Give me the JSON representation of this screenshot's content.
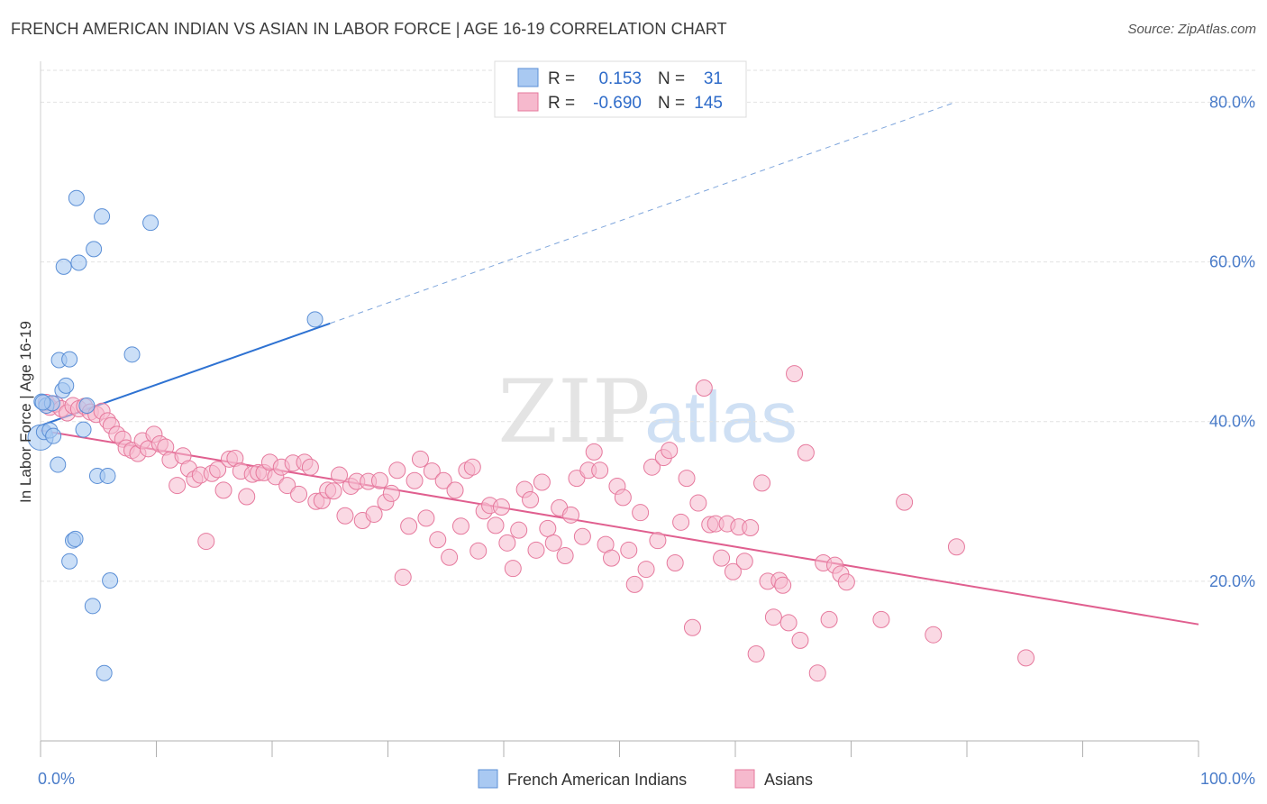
{
  "header": {
    "title": "FRENCH AMERICAN INDIAN VS ASIAN IN LABOR FORCE | AGE 16-19 CORRELATION CHART",
    "source": "Source: ZipAtlas.com"
  },
  "watermark": {
    "zip": "ZIP",
    "atlas": "atlas"
  },
  "legend_top": [
    {
      "r_label": "R =",
      "r_value": "0.153",
      "n_label": "N =",
      "n_value": "31"
    },
    {
      "r_label": "R =",
      "r_value": "-0.690",
      "n_label": "N =",
      "n_value": "145"
    }
  ],
  "legend_bottom": [
    "French American Indians",
    "Asians"
  ],
  "colors": {
    "blue_fill": "#a9c9f2",
    "blue_stroke": "#5b8fd6",
    "blue_line": "#2e72d2",
    "pink_fill": "#f6b9cd",
    "pink_stroke": "#e6799d",
    "pink_line": "#e05f8f",
    "tick_text": "#4a7cc9",
    "grid": "#e2e2e2"
  },
  "chart_data": {
    "type": "scatter",
    "title": "FRENCH AMERICAN INDIAN VS ASIAN IN LABOR FORCE | AGE 16-19 CORRELATION CHART",
    "xlabel": "",
    "ylabel": "In Labor Force | Age 16-19",
    "xlim": [
      0,
      100
    ],
    "ylim": [
      0,
      84
    ],
    "x_tick_labels": [
      "0.0%",
      "100.0%"
    ],
    "y_ticks": [
      20,
      40,
      60,
      80
    ],
    "y_tick_labels": [
      "20.0%",
      "40.0%",
      "60.0%",
      "80.0%"
    ],
    "grid": true,
    "legend_position": "top-center",
    "series": [
      {
        "name": "French American Indians",
        "color": "#a9c9f2",
        "r": 0.153,
        "n": 31,
        "trend": {
          "x": [
            0,
            25
          ],
          "y": [
            39.5,
            52.3
          ],
          "dashed_extension_to": [
            79,
            80
          ]
        },
        "points": [
          [
            0.0,
            38.0
          ],
          [
            0.1,
            42.5
          ],
          [
            0.3,
            38.7
          ],
          [
            0.5,
            42.0
          ],
          [
            0.8,
            38.9
          ],
          [
            1.0,
            42.3
          ],
          [
            1.1,
            38.2
          ],
          [
            1.5,
            34.6
          ],
          [
            1.6,
            47.7
          ],
          [
            1.9,
            43.9
          ],
          [
            2.0,
            59.4
          ],
          [
            2.2,
            44.5
          ],
          [
            2.5,
            47.8
          ],
          [
            2.5,
            22.5
          ],
          [
            2.8,
            25.1
          ],
          [
            3.0,
            25.3
          ],
          [
            3.1,
            68.0
          ],
          [
            3.3,
            59.9
          ],
          [
            3.7,
            39.0
          ],
          [
            4.0,
            42.0
          ],
          [
            4.5,
            16.9
          ],
          [
            4.6,
            61.6
          ],
          [
            4.9,
            33.2
          ],
          [
            5.3,
            65.7
          ],
          [
            5.5,
            8.5
          ],
          [
            5.8,
            33.2
          ],
          [
            6.0,
            20.1
          ],
          [
            7.9,
            48.4
          ],
          [
            9.5,
            64.9
          ],
          [
            23.7,
            52.8
          ],
          [
            0.2,
            42.4
          ]
        ]
      },
      {
        "name": "Asians",
        "color": "#f6b9cd",
        "r": -0.69,
        "n": 145,
        "trend": {
          "x": [
            0,
            100
          ],
          "y": [
            38.9,
            14.6
          ]
        },
        "points": [
          [
            0.5,
            42.4
          ],
          [
            0.8,
            41.8
          ],
          [
            1.3,
            42.2
          ],
          [
            1.8,
            41.6
          ],
          [
            2.3,
            41.1
          ],
          [
            2.8,
            42.0
          ],
          [
            3.3,
            41.6
          ],
          [
            3.8,
            41.9
          ],
          [
            4.3,
            41.2
          ],
          [
            4.8,
            40.9
          ],
          [
            5.3,
            41.3
          ],
          [
            5.8,
            40.1
          ],
          [
            6.1,
            39.5
          ],
          [
            6.6,
            38.4
          ],
          [
            7.1,
            37.8
          ],
          [
            7.4,
            36.7
          ],
          [
            7.9,
            36.4
          ],
          [
            8.4,
            36.0
          ],
          [
            8.8,
            37.6
          ],
          [
            9.3,
            36.6
          ],
          [
            9.8,
            38.4
          ],
          [
            10.3,
            37.2
          ],
          [
            10.8,
            36.8
          ],
          [
            11.2,
            35.2
          ],
          [
            11.8,
            32.0
          ],
          [
            12.3,
            35.7
          ],
          [
            12.8,
            34.1
          ],
          [
            13.3,
            32.8
          ],
          [
            13.8,
            33.3
          ],
          [
            14.3,
            25.0
          ],
          [
            14.8,
            33.5
          ],
          [
            15.3,
            34.0
          ],
          [
            15.8,
            31.4
          ],
          [
            16.3,
            35.3
          ],
          [
            16.8,
            35.4
          ],
          [
            17.3,
            33.8
          ],
          [
            17.8,
            30.6
          ],
          [
            18.3,
            33.4
          ],
          [
            18.8,
            33.6
          ],
          [
            19.3,
            33.6
          ],
          [
            19.8,
            34.9
          ],
          [
            20.3,
            33.1
          ],
          [
            20.8,
            34.3
          ],
          [
            21.3,
            32.0
          ],
          [
            21.8,
            34.8
          ],
          [
            22.3,
            30.9
          ],
          [
            22.8,
            34.9
          ],
          [
            23.3,
            34.3
          ],
          [
            23.8,
            30.0
          ],
          [
            24.3,
            30.1
          ],
          [
            24.8,
            31.4
          ],
          [
            25.3,
            31.3
          ],
          [
            25.8,
            33.3
          ],
          [
            26.3,
            28.2
          ],
          [
            26.8,
            31.9
          ],
          [
            27.3,
            32.5
          ],
          [
            27.8,
            27.6
          ],
          [
            28.3,
            32.5
          ],
          [
            28.8,
            28.4
          ],
          [
            29.3,
            32.6
          ],
          [
            29.8,
            29.9
          ],
          [
            30.3,
            31.0
          ],
          [
            30.8,
            33.9
          ],
          [
            31.3,
            20.5
          ],
          [
            31.8,
            26.9
          ],
          [
            32.3,
            32.6
          ],
          [
            32.8,
            35.3
          ],
          [
            33.3,
            27.9
          ],
          [
            33.8,
            33.8
          ],
          [
            34.3,
            25.2
          ],
          [
            34.8,
            32.6
          ],
          [
            35.3,
            23.0
          ],
          [
            35.8,
            31.4
          ],
          [
            36.3,
            26.9
          ],
          [
            36.8,
            33.9
          ],
          [
            37.3,
            34.3
          ],
          [
            37.8,
            23.8
          ],
          [
            38.3,
            28.8
          ],
          [
            38.8,
            29.5
          ],
          [
            39.3,
            27.0
          ],
          [
            39.8,
            29.3
          ],
          [
            40.3,
            24.8
          ],
          [
            40.8,
            21.6
          ],
          [
            41.3,
            26.4
          ],
          [
            41.8,
            31.5
          ],
          [
            42.3,
            30.2
          ],
          [
            42.8,
            23.9
          ],
          [
            43.3,
            32.4
          ],
          [
            43.8,
            26.6
          ],
          [
            44.3,
            24.8
          ],
          [
            44.8,
            29.2
          ],
          [
            45.3,
            23.2
          ],
          [
            45.8,
            28.3
          ],
          [
            46.3,
            32.9
          ],
          [
            46.8,
            25.6
          ],
          [
            47.3,
            33.9
          ],
          [
            47.8,
            36.2
          ],
          [
            48.3,
            33.9
          ],
          [
            48.8,
            24.6
          ],
          [
            49.3,
            22.9
          ],
          [
            49.8,
            31.9
          ],
          [
            50.3,
            30.5
          ],
          [
            50.8,
            23.9
          ],
          [
            51.3,
            19.6
          ],
          [
            51.8,
            28.6
          ],
          [
            52.3,
            21.5
          ],
          [
            52.8,
            34.3
          ],
          [
            53.3,
            25.1
          ],
          [
            53.8,
            35.5
          ],
          [
            54.3,
            36.4
          ],
          [
            54.8,
            22.3
          ],
          [
            55.3,
            27.4
          ],
          [
            55.8,
            32.9
          ],
          [
            56.3,
            14.2
          ],
          [
            56.8,
            29.8
          ],
          [
            57.3,
            44.2
          ],
          [
            57.8,
            27.1
          ],
          [
            58.3,
            27.2
          ],
          [
            58.8,
            22.9
          ],
          [
            59.3,
            27.2
          ],
          [
            59.8,
            21.2
          ],
          [
            60.3,
            26.8
          ],
          [
            60.8,
            22.5
          ],
          [
            61.3,
            26.7
          ],
          [
            61.8,
            10.9
          ],
          [
            62.3,
            32.3
          ],
          [
            62.8,
            20.0
          ],
          [
            63.3,
            15.5
          ],
          [
            63.8,
            20.1
          ],
          [
            64.1,
            19.5
          ],
          [
            64.6,
            14.8
          ],
          [
            65.1,
            46.0
          ],
          [
            65.6,
            12.6
          ],
          [
            66.1,
            36.1
          ],
          [
            67.1,
            8.5
          ],
          [
            67.6,
            22.3
          ],
          [
            68.1,
            15.2
          ],
          [
            68.6,
            22.0
          ],
          [
            69.1,
            20.9
          ],
          [
            69.6,
            19.9
          ],
          [
            72.6,
            15.2
          ],
          [
            74.6,
            29.9
          ],
          [
            77.1,
            13.3
          ],
          [
            79.1,
            24.3
          ],
          [
            85.1,
            10.4
          ]
        ]
      }
    ]
  }
}
